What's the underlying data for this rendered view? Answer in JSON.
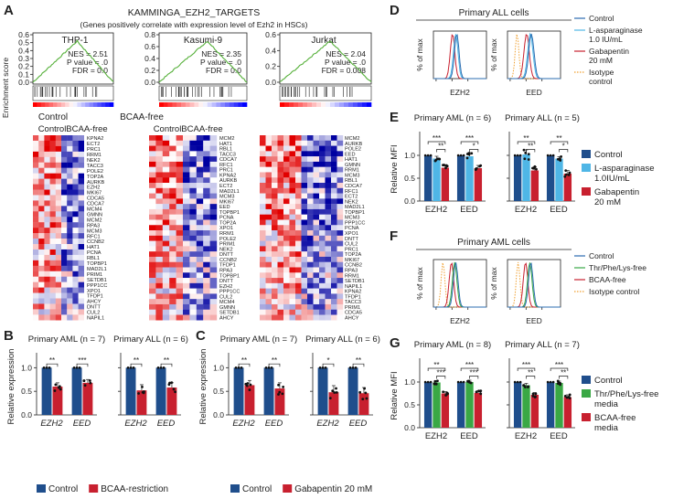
{
  "panel_letters": [
    "A",
    "B",
    "C",
    "D",
    "E",
    "F",
    "G"
  ],
  "panelA": {
    "title": "KAMMINGA_EZH2_TARGETS",
    "subtitle": "(Genes positively correlate with expression level of Ezh2 in HSCs)",
    "ylabel": "Enrichment score",
    "left_label": "Control",
    "right_label": "BCAA-free",
    "heat_left": "Control",
    "heat_right": "BCAA-free",
    "gsea": [
      {
        "cell": "THP-1",
        "nes": "NES = 2.51",
        "pval": "P value = .0",
        "fdr": "FDR = 0.0",
        "yticks": [
          "0.6",
          "0.5",
          "0.4",
          "0.3",
          "0.2",
          "0.1",
          "0.0"
        ],
        "ymax": 0.6
      },
      {
        "cell": "Kasumi-9",
        "nes": "NES = 2.35",
        "pval": "P value = .0",
        "fdr": "FDR = 0.0",
        "yticks": [
          "0.8",
          "0.6",
          "0.4",
          "0.2",
          "0.0"
        ],
        "ymax": 0.8
      },
      {
        "cell": "Jurkat",
        "nes": "NES = 2.04",
        "pval": "P value = .0",
        "fdr": "FDR = 0.008",
        "yticks": [
          "0.6",
          "0.4",
          "0.2",
          "0.0"
        ],
        "ymax": 0.6
      }
    ],
    "genes1": [
      "KPNA2",
      "ECT2",
      "PRC1",
      "RRM1",
      "NEK2",
      "TACC3",
      "POLE2",
      "TOP2A",
      "AURKB",
      "EZH2",
      "MKI67",
      "CDCA5",
      "CDCA7",
      "MCM4",
      "GMNN",
      "MCM2",
      "RPA3",
      "MCM3",
      "RFC1",
      "CCNB2",
      "HAT1",
      "PCNA",
      "RBL1",
      "TOPBP1",
      "MAD2L1",
      "PRIM1",
      "SETDB1",
      "PPP1CC",
      "XPO1",
      "TFDP1",
      "AHCY",
      "DNTT",
      "CUL2",
      "NAPIL1"
    ],
    "genes2": [
      "MCM2",
      "HAT1",
      "RBL1",
      "TACC3",
      "CDCA7",
      "RFC1",
      "PRC1",
      "KPNA2",
      "AURKB",
      "ECT2",
      "MAD2L1",
      "MCM3",
      "MKI67",
      "EED",
      "TOPBP1",
      "PCNA",
      "TOP2A",
      "XPO1",
      "RRM1",
      "POLE2",
      "PRIM1",
      "NEK2",
      "DNTT",
      "CCNB2",
      "TFDP1",
      "RPA3",
      "TOPBP1",
      "DNTT",
      "EZH2",
      "PPP1CC",
      "CUL2",
      "MCM4",
      "GMNN",
      "SETDB1",
      "AHCY"
    ],
    "genes3": [
      "MCM2",
      "AURKB",
      "POLE2",
      "EED",
      "HAT1",
      "GMNN",
      "RRM1",
      "MCM3",
      "RBL1",
      "CDCA7",
      "RFC1",
      "ECT2",
      "NEK2",
      "MAD2L1",
      "TOPBP1",
      "MCM3",
      "PPP1CC",
      "PCNA",
      "XPO1",
      "DNTT",
      "CUL2",
      "PRC1",
      "TOP2A",
      "MKI67",
      "CCNB2",
      "RPA3",
      "RRM1",
      "SETDB1",
      "NAPIL1",
      "KPNA2",
      "TFDP1",
      "TACC3",
      "PRIM1",
      "CDCA5",
      "AHCY"
    ]
  },
  "panelD": {
    "title": "Primary ALL cells",
    "ylabel": "% of max",
    "xlabels": [
      "EZH2",
      "EED"
    ],
    "legend": [
      "Control",
      "L-asparaginase 1.0 IU/mL",
      "Gabapentin 20 mM",
      "Isotype control"
    ],
    "legend_lines": [
      [
        "Control"
      ],
      [
        "L-asparaginase",
        "1.0 IU/mL"
      ],
      [
        "Gabapentin",
        "20 mM"
      ],
      [
        "Isotype",
        "control"
      ]
    ],
    "colors": [
      "#2b6cb0",
      "#4fb6e6",
      "#c8202f",
      "#f0a030"
    ]
  },
  "panelF": {
    "title": "Primary AML cells",
    "ylabel": "% of max",
    "xlabels": [
      "EZH2",
      "EED"
    ],
    "legend": [
      "Control",
      "Thr/Phe/Lys-free",
      "BCAA-free",
      "Isotype control"
    ],
    "colors": [
      "#2b6cb0",
      "#3aa845",
      "#c8202f",
      "#f0a030"
    ]
  },
  "chart_data": [
    {
      "type": "bar",
      "panel": "B",
      "title": "Primary AML (n = 7)",
      "categories": [
        "EZH2",
        "EED"
      ],
      "ylabel": "Relative expression",
      "ylim": [
        0,
        1.2
      ],
      "yticks": [
        "0.0",
        "0.5",
        "1.0"
      ],
      "series": [
        {
          "name": "Control",
          "values": [
            1.0,
            1.0
          ],
          "err": [
            0,
            0
          ]
        },
        {
          "name": "BCAA-restriction",
          "values": [
            0.6,
            0.68
          ],
          "err": [
            0.08,
            0.07
          ]
        }
      ],
      "significance": [
        "**",
        "***"
      ]
    },
    {
      "type": "bar",
      "panel": "B",
      "title": "Primary ALL (n = 6)",
      "categories": [
        "EZH2",
        "EED"
      ],
      "ylim": [
        0,
        1.2
      ],
      "series": [
        {
          "name": "Control",
          "values": [
            1.0,
            1.0
          ],
          "err": [
            0,
            0
          ]
        },
        {
          "name": "BCAA-restriction",
          "values": [
            0.52,
            0.58
          ],
          "err": [
            0.12,
            0.1
          ]
        }
      ],
      "significance": [
        "**",
        "**"
      ]
    },
    {
      "type": "bar",
      "panel": "C",
      "title": "Primary AML (n = 7)",
      "categories": [
        "EZH2",
        "EED"
      ],
      "ylabel": "Relative expression",
      "ylim": [
        0,
        1.2
      ],
      "yticks": [
        "0.0",
        "0.5",
        "1.0"
      ],
      "series": [
        {
          "name": "Control",
          "values": [
            1.0,
            1.0
          ],
          "err": [
            0,
            0
          ]
        },
        {
          "name": "Gabapentin 20 mM",
          "values": [
            0.63,
            0.56
          ],
          "err": [
            0.1,
            0.12
          ]
        }
      ],
      "significance": [
        "**",
        "**"
      ]
    },
    {
      "type": "bar",
      "panel": "C",
      "title": "Primary ALL (n = 6)",
      "categories": [
        "EZH2",
        "EED"
      ],
      "ylim": [
        0,
        1.2
      ],
      "series": [
        {
          "name": "Control",
          "values": [
            1.0,
            1.0
          ],
          "err": [
            0,
            0
          ]
        },
        {
          "name": "Gabapentin 20 mM",
          "values": [
            0.48,
            0.46
          ],
          "err": [
            0.14,
            0.12
          ]
        }
      ],
      "significance": [
        "*",
        "**"
      ]
    },
    {
      "type": "bar",
      "panel": "E",
      "title": "Primary AML (n = 6)",
      "categories": [
        "EZH2",
        "EED"
      ],
      "ylabel": "Relative MFI",
      "ylim": [
        0,
        1.4
      ],
      "yticks": [
        "0.0",
        "0.5",
        "1.0"
      ],
      "series": [
        {
          "name": "Control",
          "values": [
            1.0,
            1.0
          ],
          "err": [
            0,
            0
          ]
        },
        {
          "name": "L-asparaginase 1.0IU/mL",
          "values": [
            0.93,
            0.98
          ],
          "err": [
            0.05,
            0.08
          ]
        },
        {
          "name": "Gabapentin 20 mM",
          "values": [
            0.73,
            0.72
          ],
          "err": [
            0.06,
            0.06
          ]
        }
      ],
      "significance": [
        "***",
        "**",
        "***",
        "*"
      ]
    },
    {
      "type": "bar",
      "panel": "E",
      "title": "Primary ALL (n = 5)",
      "categories": [
        "EZH2",
        "EED"
      ],
      "ylim": [
        0,
        1.4
      ],
      "series": [
        {
          "name": "Control",
          "values": [
            1.0,
            1.0
          ],
          "err": [
            0,
            0
          ]
        },
        {
          "name": "L-asparaginase 1.0IU/mL",
          "values": [
            1.02,
            0.93
          ],
          "err": [
            0.1,
            0.04
          ]
        },
        {
          "name": "Gabapentin 20 mM",
          "values": [
            0.67,
            0.6
          ],
          "err": [
            0.08,
            0.07
          ]
        }
      ],
      "significance": [
        "**",
        "**",
        "**",
        "*"
      ]
    },
    {
      "type": "bar",
      "panel": "G",
      "title": "Primary AML (n = 8)",
      "categories": [
        "EZH2",
        "EED"
      ],
      "ylabel": "Relative MFI",
      "ylim": [
        0,
        1.4
      ],
      "yticks": [
        "0.0",
        "0.5",
        "1.0"
      ],
      "series": [
        {
          "name": "Control",
          "values": [
            1.0,
            1.0
          ],
          "err": [
            0,
            0
          ]
        },
        {
          "name": "Thr/Phe/Lys-free media",
          "values": [
            0.99,
            1.0
          ],
          "err": [
            0.04,
            0.04
          ]
        },
        {
          "name": "BCAA-free media",
          "values": [
            0.75,
            0.76
          ],
          "err": [
            0.04,
            0.05
          ]
        }
      ],
      "significance": [
        "**",
        "***",
        "***",
        "***"
      ]
    },
    {
      "type": "bar",
      "panel": "G",
      "title": "Primary ALL (n = 7)",
      "categories": [
        "EZH2",
        "EED"
      ],
      "ylim": [
        0,
        1.4
      ],
      "series": [
        {
          "name": "Control",
          "values": [
            1.0,
            1.0
          ],
          "err": [
            0,
            0
          ]
        },
        {
          "name": "Thr/Phe/Lys-free media",
          "values": [
            0.93,
            0.98
          ],
          "err": [
            0.04,
            0.04
          ]
        },
        {
          "name": "BCAA-free media",
          "values": [
            0.72,
            0.67
          ],
          "err": [
            0.05,
            0.05
          ]
        }
      ],
      "significance": [
        "***",
        "**",
        "***",
        "**"
      ]
    }
  ],
  "legendB": [
    "Control",
    "BCAA-restriction"
  ],
  "legendC": [
    "Control",
    "Gabapentin 20 mM"
  ],
  "legendE": [
    [
      "Control"
    ],
    [
      "L-asparaginase",
      "1.0IU/mL"
    ],
    [
      "Gabapentin",
      "20 mM"
    ]
  ],
  "legendG": [
    [
      "Control"
    ],
    [
      "Thr/Phe/Lys-free",
      "media"
    ],
    [
      "BCAA-free",
      "media"
    ]
  ],
  "colors": {
    "control": "#1f4e8c",
    "red": "#c8202f",
    "lightblue": "#4fb6e6",
    "green": "#3aa845"
  }
}
